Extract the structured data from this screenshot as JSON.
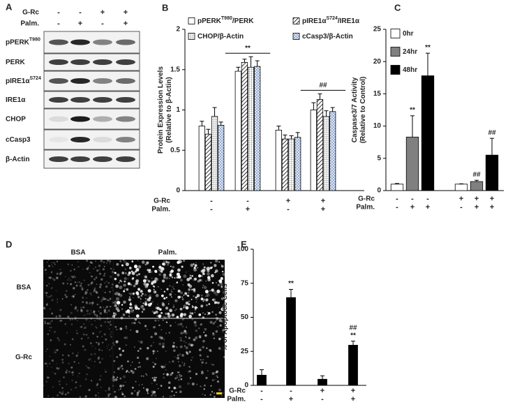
{
  "blot": {
    "panel": "A",
    "treatments": [
      {
        "label": "G-Rc",
        "signs": [
          "-",
          "-",
          "+",
          "+"
        ]
      },
      {
        "label": "Palm.",
        "signs": [
          "-",
          "+",
          "-",
          "+"
        ]
      }
    ],
    "rows": [
      [
        "pPERK",
        "T980"
      ],
      [
        "PERK"
      ],
      [
        "pIRE1α",
        "S724"
      ],
      [
        "IRE1α"
      ],
      [
        "CHOP"
      ],
      [
        "cCasp3"
      ],
      [
        "β-Actin"
      ]
    ]
  },
  "micrograph": {
    "panel": "D",
    "columns": [
      "BSA",
      "Palm."
    ],
    "rows": [
      "BSA",
      "G-Rc"
    ]
  },
  "chart_data": [
    {
      "type": "bar",
      "panel": "B",
      "y_label": [
        "Protein Expression Levels",
        "(Relative to β-Actin)"
      ],
      "ylim": [
        0,
        2
      ],
      "yticks": [
        0,
        0.5,
        1,
        1.5,
        2
      ],
      "legend_columns": 2,
      "treatments": [
        {
          "label": "G-Rc",
          "signs": [
            "-",
            "-",
            "+",
            "+"
          ]
        },
        {
          "label": "Palm.",
          "signs": [
            "-",
            "+",
            "-",
            "+"
          ]
        }
      ],
      "group_labels": [
        null,
        "**",
        null,
        "##"
      ],
      "series": [
        {
          "name": [
            "pPERK",
            "T980",
            "/PERK"
          ],
          "color": "#ffffff",
          "pattern": "none",
          "values": [
            0.8,
            1.48,
            0.75,
            1.0
          ],
          "errors": [
            0.06,
            0.05,
            0.05,
            0.09
          ]
        },
        {
          "name": [
            "pIRE1α",
            "S724",
            "/IRE1α"
          ],
          "color": "#ffffff",
          "pattern": "diagonal",
          "values": [
            0.7,
            1.59,
            0.64,
            1.13
          ],
          "errors": [
            0.06,
            0.04,
            0.05,
            0.07
          ]
        },
        {
          "name": [
            "CHOP/β-Actin"
          ],
          "color": "#ffffff",
          "pattern": "grid",
          "values": [
            0.92,
            1.53,
            0.64,
            0.92
          ],
          "errors": [
            0.11,
            0.13,
            0.04,
            0.07
          ]
        },
        {
          "name": [
            "cCasp3/β-Actin"
          ],
          "color": "#ffffff",
          "pattern": "crosshatch",
          "values": [
            0.81,
            1.54,
            0.66,
            0.98
          ],
          "errors": [
            0.04,
            0.07,
            0.06,
            0.05
          ]
        }
      ]
    },
    {
      "type": "bar",
      "panel": "C",
      "y_label": [
        "Caspase3/7 Activity",
        "(Relative to Control)"
      ],
      "ylim": [
        0,
        25
      ],
      "yticks": [
        0,
        5,
        10,
        15,
        20,
        25
      ],
      "legend_columns": 1,
      "treatments": [
        {
          "label": "G-Rc",
          "signs": [
            "-",
            "-",
            "-",
            "+",
            "+",
            "+"
          ]
        },
        {
          "label": "Palm.",
          "signs": [
            "-",
            "+",
            "+",
            "-",
            "+",
            "+"
          ]
        }
      ],
      "series": [
        {
          "name": [
            "0hr"
          ],
          "color": "#ffffff",
          "pattern": "none",
          "values": [
            1.0,
            1.0
          ],
          "errors": [
            0.1,
            0.05
          ],
          "labels": [
            null,
            null
          ]
        },
        {
          "name": [
            "24hr"
          ],
          "color": "#808080",
          "pattern": "none",
          "values": [
            8.3,
            1.4
          ],
          "errors": [
            3.3,
            0.2
          ],
          "labels": [
            [
              "**"
            ],
            [
              "##"
            ]
          ]
        },
        {
          "name": [
            "48hr"
          ],
          "color": "#000000",
          "pattern": "none",
          "values": [
            17.8,
            5.5
          ],
          "errors": [
            3.5,
            2.6
          ],
          "labels": [
            [
              "**"
            ],
            [
              "##"
            ]
          ]
        }
      ]
    },
    {
      "type": "bar",
      "panel": "E",
      "y_label": [
        "% of Apoptotic Cells"
      ],
      "ylim": [
        0,
        100
      ],
      "yticks": [
        0,
        25,
        50,
        75,
        100
      ],
      "treatments": [
        {
          "label": "G-Rc",
          "signs": [
            "-",
            "-",
            "+",
            "+"
          ]
        },
        {
          "label": "Palm.",
          "signs": [
            "-",
            "+",
            "-",
            "+"
          ]
        }
      ],
      "series": [
        {
          "color": "#000000",
          "pattern": "none",
          "values": [
            7.5,
            64.5,
            4.5,
            29.5
          ],
          "errors": [
            4,
            6,
            2.5,
            3
          ],
          "labels": [
            null,
            [
              "**"
            ],
            null,
            [
              "##",
              "**"
            ]
          ]
        }
      ]
    }
  ]
}
